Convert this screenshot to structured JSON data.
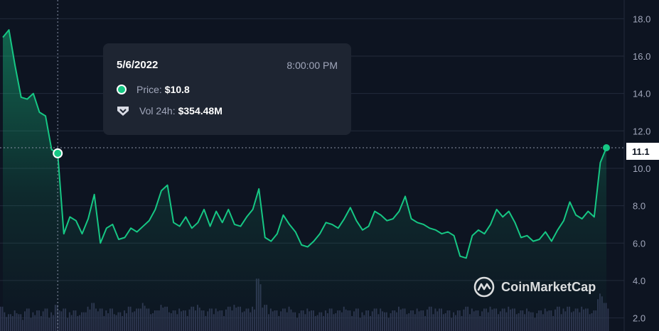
{
  "tooltip": {
    "date": "5/6/2022",
    "time": "8:00:00 PM",
    "price_label": "Price:",
    "price_value": "$10.8",
    "volume_label": "Vol 24h:",
    "volume_value": "$354.48M"
  },
  "watermark": "CoinMarketCap",
  "current_price_label": "11.1",
  "colors": {
    "background": "#0d1421",
    "line": "#16c784",
    "volume_bars": "#2e3650",
    "grid": "#222a3b",
    "axis_text": "#a1a7bb"
  },
  "chart_data": {
    "type": "area",
    "series": [
      {
        "values": [
          17.0,
          17.4,
          15.5,
          13.8,
          13.7,
          14.0,
          13.0,
          12.8,
          11.0,
          10.8,
          6.5,
          7.4,
          7.2,
          6.5,
          7.3,
          8.6,
          6.0,
          6.8,
          7.0,
          6.2,
          6.3,
          6.8,
          6.6,
          6.9,
          7.2,
          7.8,
          8.8,
          9.1,
          7.1,
          6.9,
          7.4,
          6.8,
          7.1,
          7.8,
          6.9,
          7.7,
          7.1,
          7.8,
          7.0,
          6.9,
          7.4,
          7.8,
          8.9,
          6.3,
          6.1,
          6.5,
          7.5,
          7.0,
          6.6,
          5.9,
          5.8,
          6.1,
          6.5,
          7.1,
          7.0,
          6.8,
          7.3,
          7.9,
          7.2,
          6.7,
          6.9,
          7.7,
          7.5,
          7.2,
          7.3,
          7.7,
          8.5,
          7.3,
          7.1,
          7.0,
          6.8,
          6.7,
          6.5,
          6.6,
          6.4,
          5.3,
          5.2,
          6.4,
          6.7,
          6.5,
          7.0,
          7.8,
          7.4,
          7.7,
          7.1,
          6.3,
          6.4,
          6.1,
          6.2,
          6.6,
          6.1,
          6.7,
          7.2,
          8.2,
          7.5,
          7.3,
          7.7,
          7.4,
          10.3,
          11.1
        ],
        "volumes": [
          2.6,
          2.2,
          2.4,
          2.2,
          2.5,
          2.3,
          2.4,
          2.5,
          2.3,
          2.7,
          2.5,
          2.3,
          2.4,
          2.3,
          2.6,
          2.8,
          2.5,
          2.4,
          2.5,
          2.3,
          2.4,
          2.6,
          2.5,
          2.8,
          2.5,
          2.4,
          2.7,
          2.6,
          2.4,
          2.5,
          2.4,
          2.6,
          2.7,
          2.4,
          2.5,
          2.5,
          2.4,
          2.6,
          2.7,
          2.6,
          2.5,
          2.6,
          4.1,
          2.7,
          2.5,
          2.4,
          2.5,
          2.6,
          2.3,
          2.4,
          2.5,
          2.4,
          2.3,
          2.4,
          2.5,
          2.4,
          2.6,
          2.4,
          2.5,
          2.3,
          2.4,
          2.5,
          2.5,
          2.3,
          2.4,
          2.6,
          2.5,
          2.4,
          2.5,
          2.4,
          2.6,
          2.5,
          2.5,
          2.4,
          2.3,
          2.4,
          2.6,
          2.5,
          2.4,
          2.5,
          2.6,
          2.5,
          2.5,
          2.6,
          2.5,
          2.4,
          2.5,
          2.3,
          2.4,
          2.5,
          2.4,
          2.6,
          2.5,
          2.6,
          2.5,
          2.6,
          2.5,
          2.4,
          3.3,
          2.8
        ],
        "highlighted_index": 9
      }
    ],
    "y_axis": {
      "ticks": [
        "2.0",
        "4.0",
        "6.0",
        "8.0",
        "10.0",
        "12.0",
        "14.0",
        "16.0",
        "18.0"
      ],
      "range": [
        1.3,
        19.0
      ],
      "position": "right"
    },
    "grid": true
  }
}
